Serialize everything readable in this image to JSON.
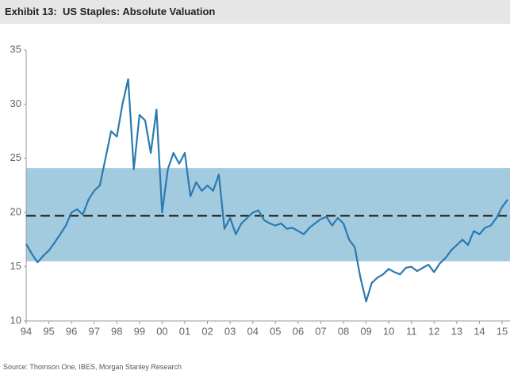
{
  "chart_data": {
    "type": "line",
    "title": "Exhibit 13:  US Staples: Absolute Valuation",
    "source": "Source: Thomson One, IBES, Morgan Stanley Research",
    "x": [
      1994.0,
      1994.25,
      1994.5,
      1994.75,
      1995.0,
      1995.25,
      1995.5,
      1995.75,
      1996.0,
      1996.25,
      1996.5,
      1996.75,
      1997.0,
      1997.25,
      1997.5,
      1997.75,
      1998.0,
      1998.25,
      1998.5,
      1998.75,
      1999.0,
      1999.25,
      1999.5,
      1999.75,
      2000.0,
      2000.25,
      2000.5,
      2000.75,
      2001.0,
      2001.25,
      2001.5,
      2001.75,
      2002.0,
      2002.25,
      2002.5,
      2002.75,
      2003.0,
      2003.25,
      2003.5,
      2003.75,
      2004.0,
      2004.25,
      2004.5,
      2004.75,
      2005.0,
      2005.25,
      2005.5,
      2005.75,
      2006.0,
      2006.25,
      2006.5,
      2006.75,
      2007.0,
      2007.25,
      2007.5,
      2007.75,
      2008.0,
      2008.25,
      2008.5,
      2008.75,
      2009.0,
      2009.25,
      2009.5,
      2009.75,
      2010.0,
      2010.25,
      2010.5,
      2010.75,
      2011.0,
      2011.25,
      2011.5,
      2011.75,
      2012.0,
      2012.25,
      2012.5,
      2012.75,
      2013.0,
      2013.25,
      2013.5,
      2013.75,
      2014.0,
      2014.25,
      2014.5,
      2014.75,
      2015.0,
      2015.25
    ],
    "values": [
      17.1,
      16.2,
      15.4,
      16.0,
      16.5,
      17.2,
      18.0,
      18.8,
      20.0,
      20.3,
      19.8,
      21.2,
      22.0,
      22.5,
      25.0,
      27.5,
      27.0,
      30.0,
      32.3,
      24.0,
      29.0,
      28.5,
      25.5,
      29.5,
      20.0,
      24.0,
      25.5,
      24.5,
      25.5,
      21.5,
      22.8,
      22.0,
      22.5,
      22.0,
      23.5,
      18.5,
      19.5,
      18.0,
      19.0,
      19.5,
      20.0,
      20.2,
      19.3,
      19.0,
      18.8,
      19.0,
      18.5,
      18.6,
      18.3,
      18.0,
      18.6,
      19.0,
      19.4,
      19.6,
      18.8,
      19.5,
      19.0,
      17.5,
      16.8,
      14.0,
      11.8,
      13.5,
      14.0,
      14.3,
      14.8,
      14.5,
      14.3,
      14.9,
      15.0,
      14.6,
      14.9,
      15.2,
      14.5,
      15.3,
      15.8,
      16.5,
      17.0,
      17.5,
      17.0,
      18.3,
      18.0,
      18.6,
      18.8,
      19.5,
      20.5,
      21.2
    ],
    "color": "#2a7ab0",
    "shaded_range": [
      15.5,
      24.1
    ],
    "shaded_color": "#a3cbe0",
    "mean_line": 19.7,
    "mean_color": "#333333",
    "xlim": [
      1994,
      2015.35
    ],
    "xticks": [
      {
        "value": 1994,
        "label": "94"
      },
      {
        "value": 1995,
        "label": "95"
      },
      {
        "value": 1996,
        "label": "96"
      },
      {
        "value": 1997,
        "label": "97"
      },
      {
        "value": 1998,
        "label": "98"
      },
      {
        "value": 1999,
        "label": "99"
      },
      {
        "value": 2000,
        "label": "00"
      },
      {
        "value": 2001,
        "label": "01"
      },
      {
        "value": 2002,
        "label": "02"
      },
      {
        "value": 2003,
        "label": "03"
      },
      {
        "value": 2004,
        "label": "04"
      },
      {
        "value": 2005,
        "label": "05"
      },
      {
        "value": 2006,
        "label": "06"
      },
      {
        "value": 2007,
        "label": "07"
      },
      {
        "value": 2008,
        "label": "08"
      },
      {
        "value": 2009,
        "label": "09"
      },
      {
        "value": 2010,
        "label": "10"
      },
      {
        "value": 2011,
        "label": "11"
      },
      {
        "value": 2012,
        "label": "12"
      },
      {
        "value": 2013,
        "label": "13"
      },
      {
        "value": 2014,
        "label": "14"
      },
      {
        "value": 2015,
        "label": "15"
      }
    ],
    "ylim": [
      10,
      35
    ],
    "yticks": [
      10,
      15,
      20,
      25,
      30,
      35
    ],
    "grid": false
  }
}
